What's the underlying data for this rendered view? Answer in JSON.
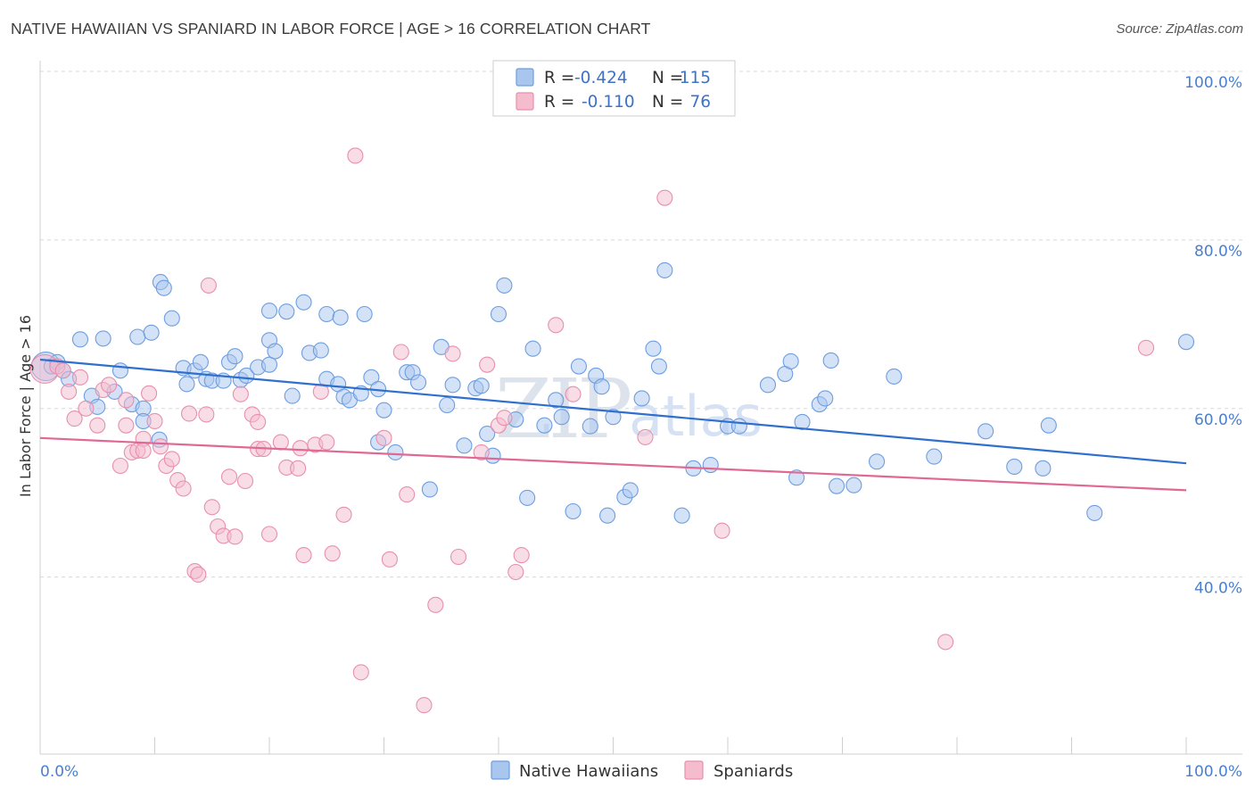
{
  "title": "NATIVE HAWAIIAN VS SPANIARD IN LABOR FORCE | AGE > 16 CORRELATION CHART",
  "source": "Source: ZipAtlas.com",
  "watermark": {
    "zip": "ZIP",
    "atlas": "atlas"
  },
  "colors": {
    "blue_fill": "#a9c6ef",
    "blue_stroke": "#6d9ee0",
    "blue_line": "#2f6fcd",
    "pink_fill": "#f4bccd",
    "pink_stroke": "#e88fae",
    "pink_line": "#e06894",
    "tick_text": "#4a7fd0",
    "grid": "#d8d8d8"
  },
  "legend": {
    "rows": [
      {
        "r_label": "R =",
        "r_value": "-0.424",
        "n_label": "N =",
        "n_value": "115"
      },
      {
        "r_label": "R =",
        "r_value": "-0.110",
        "n_label": "N =",
        "n_value": "76"
      }
    ]
  },
  "chart_data": {
    "type": "scatter",
    "title": "NATIVE HAWAIIAN VS SPANIARD IN LABOR FORCE | AGE > 16 CORRELATION CHART",
    "xlabel": "",
    "ylabel": "In Labor Force | Age > 16",
    "xlim": [
      0,
      100
    ],
    "ylim": [
      19,
      100
    ],
    "x_tick_labels": {
      "left": "0.0%",
      "right": "100.0%"
    },
    "y_ticks": [
      {
        "value": 100,
        "label": "100.0%"
      },
      {
        "value": 80,
        "label": "80.0%"
      },
      {
        "value": 60,
        "label": "60.0%"
      },
      {
        "value": 40,
        "label": "40.0%"
      }
    ],
    "x_minor_ticks": [
      0,
      10,
      20,
      30,
      40,
      50,
      60,
      70,
      80,
      90,
      100
    ],
    "grid": true,
    "legend_position": "top-center",
    "series": [
      {
        "name": "Native Hawaiians",
        "r": -0.424,
        "n": 115,
        "trend": [
          [
            0,
            65.8
          ],
          [
            100,
            53.5
          ]
        ],
        "points": [
          [
            0.5,
            65
          ],
          [
            1,
            65
          ],
          [
            1.5,
            65.5
          ],
          [
            2,
            64.5
          ],
          [
            2.5,
            63.5
          ],
          [
            3.5,
            68.2
          ],
          [
            4.5,
            61.5
          ],
          [
            5,
            60.2
          ],
          [
            5.5,
            68.3
          ],
          [
            6.5,
            62
          ],
          [
            7,
            64.5
          ],
          [
            8,
            60.5
          ],
          [
            8.5,
            68.5
          ],
          [
            9,
            60
          ],
          [
            9,
            58.5
          ],
          [
            9.7,
            69
          ],
          [
            10.4,
            56.3
          ],
          [
            10.5,
            75
          ],
          [
            10.8,
            74.3
          ],
          [
            11.5,
            70.7
          ],
          [
            12.5,
            64.8
          ],
          [
            12.8,
            62.9
          ],
          [
            13.5,
            64.5
          ],
          [
            14,
            65.5
          ],
          [
            14.5,
            63.5
          ],
          [
            15,
            63.3
          ],
          [
            16,
            63.3
          ],
          [
            16.5,
            65.5
          ],
          [
            17,
            66.2
          ],
          [
            17.5,
            63.4
          ],
          [
            18,
            63.9
          ],
          [
            19,
            64.9
          ],
          [
            20,
            71.6
          ],
          [
            20,
            68.1
          ],
          [
            20,
            65.2
          ],
          [
            20.5,
            66.8
          ],
          [
            21.5,
            71.5
          ],
          [
            22,
            61.5
          ],
          [
            23,
            72.6
          ],
          [
            23.5,
            66.6
          ],
          [
            24.5,
            66.9
          ],
          [
            25,
            63.5
          ],
          [
            26,
            62.9
          ],
          [
            26.5,
            61.4
          ],
          [
            27,
            61
          ],
          [
            28,
            61.8
          ],
          [
            29.5,
            56
          ],
          [
            25,
            71.2
          ],
          [
            26.2,
            70.8
          ],
          [
            28.3,
            71.2
          ],
          [
            28.9,
            63.7
          ],
          [
            29.5,
            62.3
          ],
          [
            30,
            59.8
          ],
          [
            31,
            54.8
          ],
          [
            32,
            64.3
          ],
          [
            32.5,
            64.3
          ],
          [
            33,
            63.1
          ],
          [
            34,
            50.4
          ],
          [
            35,
            67.3
          ],
          [
            35.5,
            60.4
          ],
          [
            36,
            62.8
          ],
          [
            37,
            55.6
          ],
          [
            38,
            62.4
          ],
          [
            38.5,
            62.7
          ],
          [
            39,
            57
          ],
          [
            39.5,
            54.4
          ],
          [
            40,
            71.2
          ],
          [
            40.5,
            74.6
          ],
          [
            41.5,
            58.7
          ],
          [
            42.5,
            49.4
          ],
          [
            43,
            67.1
          ],
          [
            44,
            58
          ],
          [
            45,
            61
          ],
          [
            45.5,
            59
          ],
          [
            46.5,
            47.8
          ],
          [
            47,
            65
          ],
          [
            48,
            57.9
          ],
          [
            48.5,
            63.9
          ],
          [
            49,
            62.6
          ],
          [
            49.5,
            47.3
          ],
          [
            50,
            59
          ],
          [
            51,
            49.5
          ],
          [
            51.5,
            50.3
          ],
          [
            52.5,
            61.2
          ],
          [
            53.5,
            67.1
          ],
          [
            54,
            65
          ],
          [
            54.5,
            76.4
          ],
          [
            56,
            47.3
          ],
          [
            57,
            52.9
          ],
          [
            58.5,
            53.3
          ],
          [
            60,
            57.9
          ],
          [
            61,
            57.9
          ],
          [
            63.5,
            62.8
          ],
          [
            65,
            64.1
          ],
          [
            65.5,
            65.6
          ],
          [
            66,
            51.8
          ],
          [
            66.5,
            58.4
          ],
          [
            68,
            60.5
          ],
          [
            68.5,
            61.2
          ],
          [
            69,
            65.7
          ],
          [
            69.5,
            50.8
          ],
          [
            71,
            50.9
          ],
          [
            73,
            53.7
          ],
          [
            74.5,
            63.8
          ],
          [
            78,
            54.3
          ],
          [
            82.5,
            57.3
          ],
          [
            85,
            53.1
          ],
          [
            87.5,
            52.9
          ],
          [
            88,
            58
          ],
          [
            92,
            47.6
          ],
          [
            100,
            67.9
          ]
        ]
      },
      {
        "name": "Spaniards",
        "r": -0.11,
        "n": 76,
        "trend": [
          [
            0,
            56.5
          ],
          [
            100,
            50.3
          ]
        ],
        "points": [
          [
            0.4,
            64.7
          ],
          [
            1.5,
            65
          ],
          [
            2,
            64.5
          ],
          [
            2.5,
            62
          ],
          [
            3,
            58.8
          ],
          [
            3.5,
            63.7
          ],
          [
            4,
            60
          ],
          [
            5,
            58
          ],
          [
            5.5,
            62.2
          ],
          [
            6,
            62.8
          ],
          [
            7,
            53.2
          ],
          [
            7.5,
            61
          ],
          [
            7.5,
            58
          ],
          [
            8,
            54.8
          ],
          [
            8.5,
            55
          ],
          [
            9,
            56.4
          ],
          [
            9,
            55
          ],
          [
            9.5,
            61.8
          ],
          [
            10,
            58.5
          ],
          [
            10.5,
            55.5
          ],
          [
            11,
            53.2
          ],
          [
            11.5,
            54
          ],
          [
            12,
            51.5
          ],
          [
            12.5,
            50.5
          ],
          [
            13,
            59.4
          ],
          [
            13.5,
            40.7
          ],
          [
            13.8,
            40.3
          ],
          [
            14.5,
            59.3
          ],
          [
            14.7,
            74.6
          ],
          [
            15,
            48.3
          ],
          [
            15.5,
            46
          ],
          [
            16,
            44.9
          ],
          [
            16.5,
            51.9
          ],
          [
            17,
            44.8
          ],
          [
            17.5,
            61.7
          ],
          [
            17.9,
            51.4
          ],
          [
            18.5,
            59.3
          ],
          [
            19,
            58.4
          ],
          [
            19,
            55.2
          ],
          [
            19.5,
            55.2
          ],
          [
            20,
            45.1
          ],
          [
            21,
            56
          ],
          [
            21.5,
            53
          ],
          [
            22.5,
            52.9
          ],
          [
            22.7,
            55.3
          ],
          [
            23,
            42.6
          ],
          [
            24,
            55.7
          ],
          [
            24.5,
            62
          ],
          [
            25,
            56
          ],
          [
            25.5,
            42.8
          ],
          [
            26.5,
            47.4
          ],
          [
            27.5,
            90
          ],
          [
            28,
            28.7
          ],
          [
            30,
            56.5
          ],
          [
            30.5,
            42.1
          ],
          [
            31.5,
            66.7
          ],
          [
            32,
            49.8
          ],
          [
            33.5,
            24.8
          ],
          [
            34.5,
            36.7
          ],
          [
            36,
            66.5
          ],
          [
            36.5,
            42.4
          ],
          [
            38.5,
            54.8
          ],
          [
            39,
            65.2
          ],
          [
            40,
            58
          ],
          [
            40.5,
            58.9
          ],
          [
            41.5,
            40.6
          ],
          [
            42,
            42.6
          ],
          [
            45,
            69.9
          ],
          [
            46.5,
            61.7
          ],
          [
            52.8,
            56.6
          ],
          [
            54.5,
            85
          ],
          [
            59.5,
            45.5
          ],
          [
            79,
            32.3
          ],
          [
            96.5,
            67.2
          ]
        ]
      }
    ]
  },
  "bottom_legend": [
    {
      "label": "Native Hawaiians",
      "color": "blue"
    },
    {
      "label": "Spaniards",
      "color": "pink"
    }
  ]
}
